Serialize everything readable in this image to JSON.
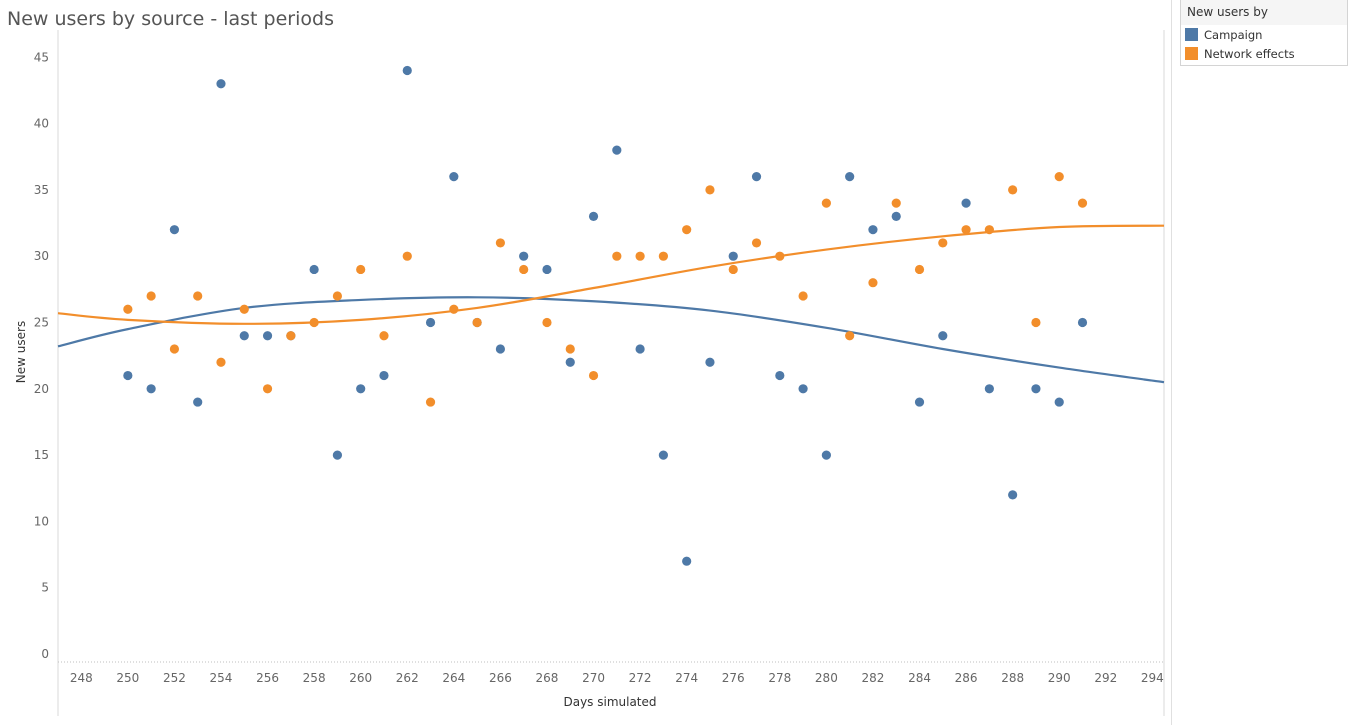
{
  "chart_data": {
    "type": "scatter",
    "title": "New users by source - last periods",
    "xlabel": "Days simulated",
    "ylabel": "New users",
    "xlim": [
      247,
      294.5
    ],
    "ylim": [
      -0.6,
      46
    ],
    "xticks": [
      248,
      250,
      252,
      254,
      256,
      258,
      260,
      262,
      264,
      266,
      268,
      270,
      272,
      274,
      276,
      278,
      280,
      282,
      284,
      286,
      288,
      290,
      292,
      294
    ],
    "yticks": [
      0,
      5,
      10,
      15,
      20,
      25,
      30,
      35,
      40,
      45
    ],
    "grid": false,
    "legend_title": "New users by",
    "legend_position": "top-right",
    "trend_lines": "polynomial",
    "series": [
      {
        "name": "Campaign",
        "color": "#4e79a7",
        "x": [
          250,
          251,
          252,
          253,
          254,
          255,
          256,
          257,
          258,
          259,
          260,
          261,
          262,
          263,
          264,
          265,
          266,
          267,
          268,
          269,
          270,
          271,
          272,
          273,
          274,
          275,
          276,
          277,
          278,
          279,
          280,
          281,
          282,
          283,
          284,
          285,
          286,
          287,
          288,
          289,
          290,
          291
        ],
        "y": [
          21,
          20,
          32,
          19,
          43,
          24,
          24,
          24,
          29,
          15,
          20,
          21,
          44,
          25,
          36,
          25,
          23,
          30,
          29,
          22,
          33,
          38,
          23,
          15,
          7,
          22,
          30,
          36,
          21,
          20,
          15,
          36,
          32,
          33,
          19,
          24,
          34,
          20,
          12,
          20,
          19,
          25
        ],
        "trend": [
          [
            247,
            23.2
          ],
          [
            250,
            24.5
          ],
          [
            255,
            26.1
          ],
          [
            260,
            26.7
          ],
          [
            265,
            26.9
          ],
          [
            270,
            26.6
          ],
          [
            275,
            25.9
          ],
          [
            280,
            24.6
          ],
          [
            285,
            23.0
          ],
          [
            290,
            21.6
          ],
          [
            294.5,
            20.5
          ]
        ]
      },
      {
        "name": "Network effects",
        "color": "#f28e2b",
        "x": [
          250,
          251,
          252,
          253,
          254,
          255,
          256,
          257,
          258,
          259,
          260,
          261,
          262,
          263,
          264,
          265,
          266,
          267,
          268,
          269,
          270,
          271,
          272,
          273,
          274,
          275,
          276,
          277,
          278,
          279,
          280,
          281,
          282,
          283,
          284,
          285,
          286,
          287,
          288,
          289,
          290,
          291
        ],
        "y": [
          26,
          27,
          23,
          27,
          22,
          26,
          20,
          24,
          25,
          27,
          29,
          24,
          30,
          19,
          26,
          25,
          31,
          29,
          25,
          23,
          21,
          30,
          30,
          30,
          32,
          35,
          29,
          31,
          30,
          27,
          34,
          24,
          28,
          34,
          29,
          31,
          32,
          32,
          35,
          25,
          36,
          34
        ],
        "trend": [
          [
            247,
            25.7
          ],
          [
            250,
            25.2
          ],
          [
            255,
            24.9
          ],
          [
            260,
            25.2
          ],
          [
            265,
            26.1
          ],
          [
            270,
            27.6
          ],
          [
            275,
            29.2
          ],
          [
            280,
            30.5
          ],
          [
            285,
            31.5
          ],
          [
            290,
            32.2
          ],
          [
            294.5,
            32.3
          ]
        ]
      }
    ]
  }
}
